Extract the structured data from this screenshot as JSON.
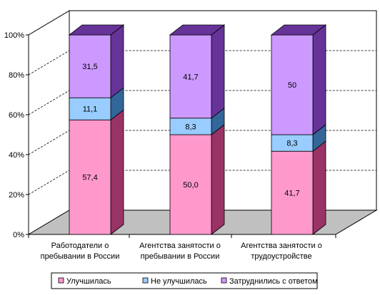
{
  "chart_data": {
    "type": "bar",
    "stacked": true,
    "percent": true,
    "three_d": true,
    "categories": [
      "Работодатели о пребывании в России",
      "Агентства занятости о пребывании в России",
      "Агентства занятости о трудоустройстве"
    ],
    "category_lines": [
      [
        "Работодатели о",
        "пребывании в России"
      ],
      [
        "Агентства занятости о",
        "пребывании в России"
      ],
      [
        "Агентства занятости о",
        "трудоустройстве"
      ]
    ],
    "series": [
      {
        "name": "Улучшилась",
        "values": [
          57.4,
          50.0,
          41.7
        ],
        "labels": [
          "57,4",
          "50,0",
          "41,7"
        ],
        "color": "#ff99cc",
        "side_color": "#993366"
      },
      {
        "name": "Не улучшилась",
        "values": [
          11.1,
          8.3,
          8.3
        ],
        "labels": [
          "11,1",
          "8,3",
          "8,3"
        ],
        "color": "#99ccff",
        "side_color": "#336699"
      },
      {
        "name": "Затруднились с ответом",
        "values": [
          31.5,
          41.7,
          50
        ],
        "labels": [
          "31,5",
          "41,7",
          "50"
        ],
        "color": "#cc99ff",
        "side_color": "#663399"
      }
    ],
    "y_ticks": [
      "0%",
      "20%",
      "40%",
      "60%",
      "80%",
      "100%"
    ],
    "ylim": [
      0,
      100
    ],
    "grid": true,
    "legend": "bottom"
  }
}
